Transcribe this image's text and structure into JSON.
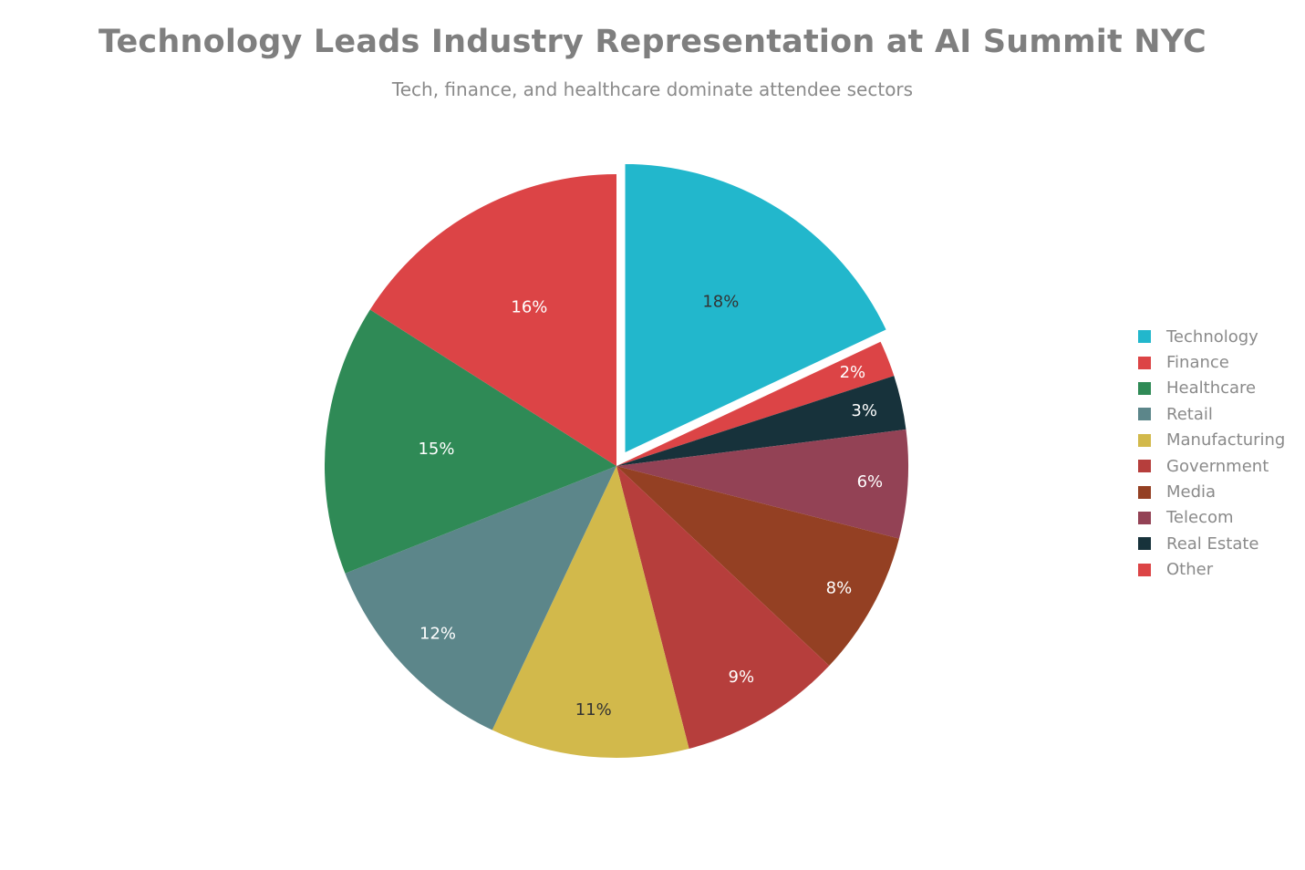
{
  "chart_data": {
    "type": "pie",
    "title": "Technology Leads Industry Representation at AI Summit NYC",
    "subtitle": "Tech, finance, and healthcare dominate attendee sectors",
    "slices": [
      {
        "label": "Technology",
        "value": 18,
        "display": "18%",
        "color": "#22b7cc",
        "label_color": "#333333",
        "pulled": true
      },
      {
        "label": "Other",
        "value": 2,
        "display": "2%",
        "color": "#dc4446",
        "label_color": "#ffffff",
        "pulled": false
      },
      {
        "label": "Real Estate",
        "value": 3,
        "display": "3%",
        "color": "#17323b",
        "label_color": "#ffffff",
        "pulled": false
      },
      {
        "label": "Telecom",
        "value": 6,
        "display": "6%",
        "color": "#934255",
        "label_color": "#ffffff",
        "pulled": false
      },
      {
        "label": "Media",
        "value": 8,
        "display": "8%",
        "color": "#944023",
        "label_color": "#ffffff",
        "pulled": false
      },
      {
        "label": "Government",
        "value": 9,
        "display": "9%",
        "color": "#b63e3c",
        "label_color": "#ffffff",
        "pulled": false
      },
      {
        "label": "Manufacturing",
        "value": 11,
        "display": "11%",
        "color": "#d2b94b",
        "label_color": "#333333",
        "pulled": false
      },
      {
        "label": "Retail",
        "value": 12,
        "display": "12%",
        "color": "#5c868a",
        "label_color": "#ffffff",
        "pulled": false
      },
      {
        "label": "Healthcare",
        "value": 15,
        "display": "15%",
        "color": "#2f8a56",
        "label_color": "#ffffff",
        "pulled": false
      },
      {
        "label": "Finance",
        "value": 16,
        "display": "16%",
        "color": "#dc4446",
        "label_color": "#ffffff",
        "pulled": false
      }
    ],
    "legend": {
      "position": "right",
      "items": [
        {
          "label": "Technology",
          "color": "#22b7cc"
        },
        {
          "label": "Finance",
          "color": "#dc4446"
        },
        {
          "label": "Healthcare",
          "color": "#2f8a56"
        },
        {
          "label": "Retail",
          "color": "#5c868a"
        },
        {
          "label": "Manufacturing",
          "color": "#d2b94b"
        },
        {
          "label": "Government",
          "color": "#b63e3c"
        },
        {
          "label": "Media",
          "color": "#944023"
        },
        {
          "label": "Telecom",
          "color": "#934255"
        },
        {
          "label": "Real Estate",
          "color": "#17323b"
        },
        {
          "label": "Other",
          "color": "#dc4446"
        }
      ]
    }
  }
}
